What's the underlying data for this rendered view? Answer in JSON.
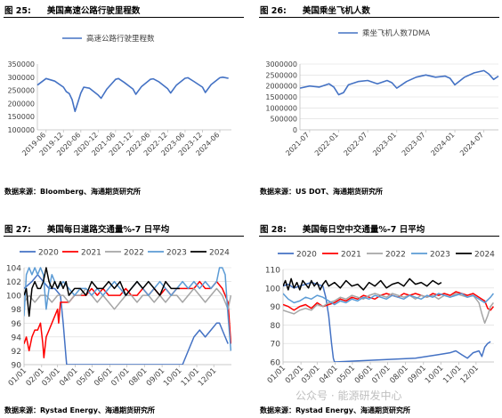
{
  "panels": [
    {
      "fig": "图 25:",
      "title": "美国高速公路行驶里程数",
      "source": "数据来源：Bloomberg、海通期货研究所"
    },
    {
      "fig": "图 26:",
      "title": "美国乘坐飞机人数",
      "source": "数据来源：US DOT、海通期货研究所"
    },
    {
      "fig": "图 27:",
      "title": "美国每日道路交通量%-7 日平均",
      "source": "数据来源：Rystad Energy、海通期货研究所"
    },
    {
      "fig": "图 28:",
      "title": "美国每日空中交通量%-7 日平均",
      "source": "数据来源：Rystad Energy、海通期货研究所"
    }
  ],
  "watermark": "公众号 · 能源研发中心",
  "chart_data": [
    {
      "type": "line",
      "title": "",
      "legend": "top-center",
      "series": [
        {
          "name": "高速公路行驶里程数",
          "color": "#4472c4"
        }
      ],
      "ylim": [
        100000,
        350000
      ],
      "yticks": [
        100000,
        150000,
        200000,
        250000,
        300000,
        350000
      ],
      "xlim": [
        "2019-03",
        "2024-10"
      ],
      "xticks": [
        "2019-06",
        "2019-12",
        "2020-06",
        "2020-12",
        "2021-06",
        "2021-12",
        "2022-06",
        "2022-12",
        "2023-06",
        "2023-12",
        "2024-06"
      ],
      "x": [
        "2019-03",
        "2019-06",
        "2019-09",
        "2019-12",
        "2020-01",
        "2020-02",
        "2020-03",
        "2020-04",
        "2020-05",
        "2020-06",
        "2020-07",
        "2020-09",
        "2020-12",
        "2021-01",
        "2021-03",
        "2021-06",
        "2021-07",
        "2021-09",
        "2021-12",
        "2022-01",
        "2022-03",
        "2022-06",
        "2022-07",
        "2022-09",
        "2022-12",
        "2023-01",
        "2023-03",
        "2023-06",
        "2023-07",
        "2023-09",
        "2023-12",
        "2024-01",
        "2024-03",
        "2024-06",
        "2024-07",
        "2024-09"
      ],
      "values": [
        270000,
        295000,
        285000,
        262000,
        245000,
        238000,
        215000,
        170000,
        205000,
        240000,
        262000,
        258000,
        232000,
        220000,
        255000,
        292000,
        295000,
        280000,
        255000,
        235000,
        265000,
        292000,
        294000,
        282000,
        256000,
        240000,
        270000,
        296000,
        298000,
        284000,
        262000,
        242000,
        272000,
        298000,
        300000,
        296000
      ]
    },
    {
      "type": "line",
      "title": "",
      "legend": "top-center",
      "series": [
        {
          "name": "乘坐飞机人数7DMA",
          "color": "#4472c4"
        }
      ],
      "ylim": [
        0,
        3000000
      ],
      "yticks": [
        0,
        500000,
        1000000,
        1500000,
        2000000,
        2500000,
        3000000
      ],
      "xlim": [
        "2021-05",
        "2024-10"
      ],
      "xticks": [
        "2021-07",
        "2022-01",
        "2022-07",
        "2023-01",
        "2023-07",
        "2024-01",
        "2024-07"
      ],
      "x": [
        "2021-05",
        "2021-07",
        "2021-09",
        "2021-11",
        "2021-12",
        "2022-01",
        "2022-02",
        "2022-03",
        "2022-05",
        "2022-07",
        "2022-09",
        "2022-11",
        "2022-12",
        "2023-01",
        "2023-03",
        "2023-05",
        "2023-07",
        "2023-09",
        "2023-11",
        "2023-12",
        "2024-01",
        "2024-03",
        "2024-05",
        "2024-07",
        "2024-08",
        "2024-09",
        "2024-10"
      ],
      "values": [
        1900000,
        2000000,
        1950000,
        2100000,
        1950000,
        1600000,
        1700000,
        2050000,
        2200000,
        2250000,
        2100000,
        2250000,
        2150000,
        1900000,
        2200000,
        2400000,
        2500000,
        2400000,
        2450000,
        2350000,
        2050000,
        2400000,
        2600000,
        2700000,
        2550000,
        2300000,
        2450000
      ]
    },
    {
      "type": "line",
      "title": "",
      "legend": "top",
      "ylim": [
        90,
        104
      ],
      "yticks": [
        90,
        92,
        94,
        96,
        98,
        100,
        102,
        104
      ],
      "xlim": [
        1,
        366
      ],
      "xticks": [
        "01/01",
        "02/01",
        "03/01",
        "04/01",
        "05/01",
        "06/01",
        "07/01",
        "08/01",
        "09/01",
        "10/01",
        "11/01",
        "12/01"
      ],
      "series": [
        {
          "name": "2020",
          "color": "#4472c4",
          "x": [
            1,
            15,
            25,
            35,
            45,
            55,
            65,
            70,
            75,
            76,
            280,
            290,
            300,
            310,
            320,
            330,
            340,
            345,
            350,
            355,
            360
          ],
          "y": [
            101,
            102,
            103,
            102,
            101,
            101,
            100,
            96,
            91,
            90,
            90,
            92,
            94,
            95,
            94,
            95,
            96,
            96,
            95,
            94,
            93
          ]
        },
        {
          "name": "2021",
          "color": "#ff0000",
          "x": [
            1,
            5,
            10,
            15,
            20,
            25,
            30,
            34,
            36,
            40,
            45,
            50,
            55,
            60,
            62,
            65,
            70,
            80,
            90,
            100,
            110,
            120,
            130,
            140,
            150,
            160,
            170,
            180,
            190,
            200,
            210,
            220,
            230,
            240,
            250,
            260,
            270,
            280,
            290,
            300,
            310,
            320,
            330,
            340,
            350,
            355,
            360,
            365
          ],
          "y": [
            93,
            94,
            92,
            94,
            95,
            95,
            96,
            93,
            91,
            94,
            95,
            96,
            97,
            98,
            96,
            99,
            99,
            99,
            100,
            100,
            100,
            101,
            100,
            101,
            100,
            100,
            100,
            101,
            100,
            100,
            101,
            100,
            101,
            100,
            101,
            100,
            101,
            101,
            101,
            101,
            102,
            101,
            101,
            102,
            101,
            100,
            99,
            93
          ]
        },
        {
          "name": "2022",
          "color": "#a6a6a6",
          "x": [
            1,
            10,
            20,
            30,
            40,
            50,
            60,
            70,
            80,
            90,
            100,
            110,
            120,
            130,
            140,
            150,
            160,
            170,
            180,
            190,
            200,
            210,
            220,
            230,
            240,
            250,
            260,
            270,
            280,
            290,
            300,
            310,
            320,
            330,
            340,
            350,
            360,
            365
          ],
          "y": [
            99,
            100,
            99,
            100,
            100,
            99,
            100,
            100,
            99,
            100,
            100,
            101,
            100,
            99,
            100,
            99,
            98,
            99,
            100,
            100,
            99,
            100,
            100,
            99,
            100,
            99,
            100,
            100,
            99,
            100,
            101,
            100,
            99,
            100,
            101,
            100,
            98,
            100
          ]
        },
        {
          "name": "2023",
          "color": "#5b9bd5",
          "x": [
            1,
            5,
            10,
            15,
            20,
            25,
            30,
            35,
            40,
            45,
            50,
            55,
            60,
            70,
            80,
            90,
            100,
            110,
            120,
            130,
            140,
            150,
            160,
            170,
            180,
            190,
            200,
            210,
            220,
            230,
            240,
            250,
            260,
            270,
            280,
            290,
            300,
            310,
            320,
            330,
            340,
            345,
            350,
            355,
            360,
            365
          ],
          "y": [
            97,
            103,
            104,
            103,
            104,
            103,
            104,
            103,
            98,
            101,
            103,
            102,
            101,
            102,
            101,
            100,
            101,
            101,
            100,
            101,
            100,
            101,
            102,
            101,
            100,
            101,
            102,
            101,
            100,
            101,
            102,
            101,
            100,
            101,
            102,
            101,
            102,
            101,
            102,
            101,
            102,
            104,
            104,
            103,
            97,
            92
          ]
        },
        {
          "name": "2024",
          "color": "#000000",
          "x": [
            1,
            5,
            10,
            15,
            20,
            25,
            30,
            35,
            40,
            45,
            50,
            55,
            60,
            65,
            70,
            75,
            80,
            90,
            100,
            110,
            120,
            130,
            140,
            150,
            160,
            170,
            180,
            190,
            200,
            210,
            220,
            230,
            240,
            250,
            260,
            270,
            275
          ],
          "y": [
            100,
            101,
            97,
            101,
            102,
            101,
            101,
            102,
            104,
            102,
            101,
            102,
            101,
            102,
            101,
            102,
            100,
            101,
            101,
            100,
            102,
            101,
            101,
            102,
            101,
            102,
            100,
            101,
            102,
            101,
            102,
            101,
            100,
            102,
            101,
            101,
            101
          ]
        }
      ]
    },
    {
      "type": "line",
      "title": "",
      "legend": "top",
      "ylim": [
        60,
        110
      ],
      "yticks": [
        60,
        70,
        80,
        90,
        100,
        110
      ],
      "xlim": [
        1,
        366
      ],
      "xticks": [
        "01/01",
        "02/01",
        "03/01",
        "04/01",
        "05/01",
        "06/01",
        "07/01",
        "08/01",
        "09/01",
        "10/01",
        "11/01",
        "12/01"
      ],
      "series": [
        {
          "name": "2020",
          "color": "#4472c4",
          "x": [
            1,
            10,
            20,
            30,
            40,
            50,
            60,
            70,
            75,
            80,
            85,
            88,
            90,
            230,
            250,
            270,
            290,
            300,
            310,
            320,
            330,
            340,
            345,
            350,
            355,
            360
          ],
          "y": [
            101,
            102,
            100,
            101,
            102,
            103,
            102,
            101,
            95,
            85,
            70,
            62,
            60,
            62,
            63,
            64,
            65,
            66,
            64,
            62,
            65,
            66,
            63,
            68,
            70,
            71
          ]
        },
        {
          "name": "2021",
          "color": "#ff0000",
          "x": [
            1,
            10,
            20,
            30,
            40,
            50,
            60,
            70,
            80,
            90,
            100,
            110,
            120,
            130,
            140,
            150,
            160,
            170,
            180,
            190,
            200,
            210,
            220,
            230,
            240,
            250,
            260,
            270,
            280,
            290,
            300,
            310,
            320,
            330,
            340,
            350,
            355,
            360,
            365
          ],
          "y": [
            91,
            90,
            88,
            90,
            91,
            89,
            92,
            90,
            91,
            92,
            94,
            93,
            95,
            94,
            96,
            95,
            94,
            96,
            97,
            96,
            95,
            97,
            96,
            97,
            96,
            95,
            97,
            96,
            97,
            96,
            98,
            97,
            96,
            97,
            95,
            93,
            89,
            88,
            90
          ]
        },
        {
          "name": "2022",
          "color": "#a6a6a6",
          "x": [
            1,
            10,
            20,
            30,
            40,
            50,
            60,
            70,
            80,
            90,
            100,
            110,
            120,
            130,
            140,
            150,
            160,
            170,
            180,
            190,
            200,
            210,
            220,
            230,
            240,
            250,
            260,
            270,
            280,
            290,
            300,
            310,
            320,
            330,
            340,
            345,
            350,
            355,
            360,
            365
          ],
          "y": [
            88,
            87,
            86,
            88,
            89,
            88,
            91,
            90,
            92,
            93,
            95,
            94,
            96,
            95,
            94,
            96,
            97,
            96,
            95,
            97,
            96,
            95,
            96,
            94,
            96,
            95,
            96,
            94,
            96,
            95,
            97,
            96,
            95,
            96,
            92,
            86,
            81,
            85,
            90,
            92
          ]
        },
        {
          "name": "2023",
          "color": "#5b9bd5",
          "x": [
            1,
            10,
            20,
            30,
            40,
            50,
            60,
            70,
            80,
            90,
            100,
            110,
            120,
            130,
            140,
            150,
            160,
            170,
            180,
            190,
            200,
            210,
            220,
            230,
            240,
            250,
            260,
            270,
            280,
            290,
            300,
            310,
            320,
            330,
            340,
            350,
            360,
            365
          ],
          "y": [
            97,
            94,
            92,
            93,
            95,
            94,
            96,
            95,
            93,
            91,
            93,
            92,
            94,
            93,
            95,
            94,
            96,
            95,
            94,
            96,
            95,
            94,
            96,
            95,
            94,
            96,
            95,
            97,
            96,
            95,
            96,
            97,
            95,
            96,
            94,
            92,
            95,
            97
          ]
        },
        {
          "name": "2024",
          "color": "#000000",
          "x": [
            1,
            5,
            10,
            15,
            20,
            25,
            30,
            35,
            40,
            45,
            50,
            55,
            60,
            65,
            70,
            75,
            80,
            90,
            100,
            110,
            120,
            130,
            140,
            150,
            160,
            170,
            180,
            190,
            200,
            210,
            220,
            230,
            240,
            250,
            260,
            270,
            275
          ],
          "y": [
            101,
            104,
            99,
            105,
            100,
            103,
            99,
            104,
            102,
            100,
            104,
            101,
            103,
            99,
            102,
            104,
            101,
            103,
            100,
            104,
            101,
            102,
            99,
            103,
            101,
            104,
            100,
            102,
            103,
            101,
            105,
            102,
            103,
            101,
            104,
            102,
            103
          ]
        }
      ]
    }
  ]
}
